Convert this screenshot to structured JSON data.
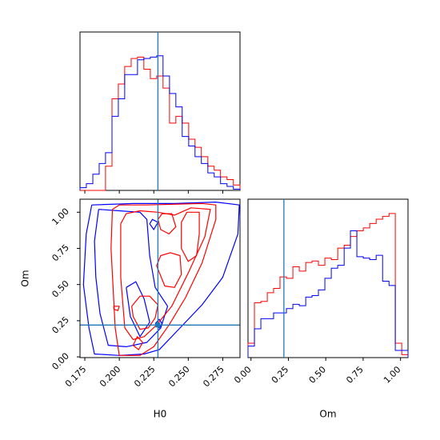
{
  "chart_data": {
    "type": "corner",
    "truth": {
      "H0": 0.228,
      "Om": 0.22
    },
    "colors": {
      "red": "#ff0000",
      "blue": "#0000ff",
      "truth": "#1f77b4"
    },
    "panels": {
      "h0_hist": {
        "type": "histogram",
        "xlim": [
          0.1715,
          0.2875
        ],
        "bin_edges": [
          0.1715,
          0.1761,
          0.1808,
          0.1854,
          0.19,
          0.1947,
          0.1993,
          0.2039,
          0.2086,
          0.2132,
          0.2178,
          0.2225,
          0.2271,
          0.2317,
          0.2364,
          0.241,
          0.2456,
          0.2503,
          0.2549,
          0.2595,
          0.2642,
          0.2688,
          0.2734,
          0.2781,
          0.2827,
          0.2875
        ],
        "series": [
          {
            "name": "",
            "color": "#ff0000",
            "values": [
              0,
              0,
              0,
              0,
              0.18,
              0.68,
              0.79,
              0.92,
              0.98,
              0.99,
              0.9,
              0.83,
              0.85,
              0.76,
              0.5,
              0.55,
              0.5,
              0.38,
              0.32,
              0.25,
              0.18,
              0.15,
              0.1,
              0.08,
              0.04
            ]
          },
          {
            "name": "",
            "color": "#0000ff",
            "values": [
              0.02,
              0.05,
              0.12,
              0.2,
              0.28,
              0.55,
              0.68,
              0.86,
              0.86,
              0.97,
              0.98,
              0.99,
              1.0,
              0.85,
              0.72,
              0.62,
              0.4,
              0.33,
              0.25,
              0.2,
              0.13,
              0.1,
              0.05,
              0.03,
              0.01
            ]
          }
        ]
      },
      "om_hist": {
        "type": "histogram",
        "xlim": [
          -0.02,
          1.05
        ],
        "bin_edges": [
          -0.02,
          0.023,
          0.066,
          0.109,
          0.151,
          0.194,
          0.237,
          0.28,
          0.323,
          0.366,
          0.408,
          0.451,
          0.494,
          0.537,
          0.58,
          0.623,
          0.665,
          0.708,
          0.751,
          0.794,
          0.837,
          0.88,
          0.923,
          0.965,
          1.008,
          1.05
        ],
        "series": [
          {
            "name": "",
            "color": "#ff0000",
            "values": [
              0.1,
              0.38,
              0.39,
              0.45,
              0.48,
              0.56,
              0.55,
              0.63,
              0.6,
              0.66,
              0.67,
              0.64,
              0.69,
              0.68,
              0.76,
              0.78,
              0.84,
              0.88,
              0.9,
              0.93,
              0.96,
              0.98,
              1.0,
              0.1,
              0.02
            ]
          },
          {
            "name": "",
            "color": "#0000ff",
            "values": [
              0.08,
              0.2,
              0.27,
              0.27,
              0.31,
              0.31,
              0.34,
              0.37,
              0.36,
              0.42,
              0.43,
              0.47,
              0.55,
              0.62,
              0.64,
              0.76,
              0.88,
              0.7,
              0.69,
              0.68,
              0.71,
              0.53,
              0.5,
              0.05,
              0.05
            ]
          }
        ]
      },
      "joint": {
        "type": "contour",
        "xlim": [
          0.1715,
          0.2875
        ],
        "ylim": [
          -0.005,
          1.09
        ],
        "red_levels": [
          [
            [
              0.195,
              1.02
            ],
            [
              0.194,
              0.75
            ],
            [
              0.197,
              0.2
            ],
            [
              0.2,
              0.01
            ],
            [
              0.208,
              0.01
            ],
            [
              0.215,
              0.01
            ],
            [
              0.225,
              0.07
            ],
            [
              0.236,
              0.22
            ],
            [
              0.248,
              0.41
            ],
            [
              0.26,
              0.65
            ],
            [
              0.27,
              0.95
            ],
            [
              0.27,
              1.05
            ],
            [
              0.26,
              1.06
            ],
            [
              0.22,
              1.05
            ],
            [
              0.2,
              1.05
            ],
            [
              0.195,
              1.02
            ]
          ],
          [
            [
              0.201,
              0.92
            ],
            [
              0.201,
              0.55
            ],
            [
              0.204,
              0.2
            ],
            [
              0.21,
              0.12
            ],
            [
              0.218,
              0.14
            ],
            [
              0.227,
              0.22
            ],
            [
              0.238,
              0.35
            ],
            [
              0.25,
              0.58
            ],
            [
              0.262,
              0.83
            ],
            [
              0.266,
              1.02
            ],
            [
              0.252,
              1.03
            ],
            [
              0.24,
              0.98
            ],
            [
              0.228,
              1.0
            ],
            [
              0.215,
              1.01
            ],
            [
              0.205,
              0.99
            ],
            [
              0.201,
              0.92
            ]
          ],
          [
            [
              0.209,
              0.35
            ],
            [
              0.21,
              0.28
            ],
            [
              0.215,
              0.19
            ],
            [
              0.221,
              0.2
            ],
            [
              0.226,
              0.27
            ],
            [
              0.228,
              0.36
            ],
            [
              0.222,
              0.42
            ],
            [
              0.215,
              0.42
            ],
            [
              0.209,
              0.35
            ]
          ],
          [
            [
              0.227,
              0.63
            ],
            [
              0.233,
              0.49
            ],
            [
              0.24,
              0.48
            ],
            [
              0.245,
              0.57
            ],
            [
              0.244,
              0.7
            ],
            [
              0.237,
              0.72
            ],
            [
              0.23,
              0.7
            ],
            [
              0.227,
              0.63
            ]
          ],
          [
            [
              0.245,
              0.75
            ],
            [
              0.25,
              0.66
            ],
            [
              0.256,
              0.7
            ],
            [
              0.258,
              0.85
            ],
            [
              0.258,
              1.0
            ],
            [
              0.249,
              1.0
            ],
            [
              0.245,
              0.93
            ],
            [
              0.245,
              0.75
            ]
          ],
          [
            [
              0.228,
              0.95
            ],
            [
              0.23,
              0.88
            ],
            [
              0.236,
              0.85
            ],
            [
              0.241,
              0.9
            ],
            [
              0.238,
              0.99
            ],
            [
              0.231,
              0.99
            ],
            [
              0.228,
              0.95
            ]
          ],
          [
            [
              0.21,
              0.08
            ],
            [
              0.214,
              0.05
            ],
            [
              0.217,
              0.1
            ],
            [
              0.213,
              0.14
            ],
            [
              0.21,
              0.08
            ]
          ],
          [
            [
              0.196,
              0.33
            ],
            [
              0.199,
              0.32
            ],
            [
              0.2,
              0.35
            ],
            [
              0.196,
              0.35
            ],
            [
              0.196,
              0.33
            ]
          ]
        ],
        "blue_levels": [
          [
            [
              0.18,
              1.05
            ],
            [
              0.176,
              0.85
            ],
            [
              0.174,
              0.5
            ],
            [
              0.178,
              0.2
            ],
            [
              0.182,
              0.02
            ],
            [
              0.2,
              0.01
            ],
            [
              0.218,
              0.02
            ],
            [
              0.229,
              0.05
            ],
            [
              0.242,
              0.18
            ],
            [
              0.26,
              0.36
            ],
            [
              0.275,
              0.55
            ],
            [
              0.286,
              0.85
            ],
            [
              0.287,
              1.05
            ],
            [
              0.27,
              1.07
            ],
            [
              0.24,
              1.06
            ],
            [
              0.21,
              1.06
            ],
            [
              0.18,
              1.05
            ]
          ],
          [
            [
              0.185,
              1.02
            ],
            [
              0.182,
              0.8
            ],
            [
              0.183,
              0.55
            ],
            [
              0.186,
              0.3
            ],
            [
              0.192,
              0.08
            ],
            [
              0.205,
              0.07
            ],
            [
              0.22,
              0.1
            ],
            [
              0.23,
              0.2
            ],
            [
              0.235,
              0.35
            ],
            [
              0.226,
              0.48
            ],
            [
              0.222,
              0.7
            ],
            [
              0.22,
              0.95
            ],
            [
              0.215,
              1.0
            ],
            [
              0.2,
              1.01
            ],
            [
              0.185,
              1.02
            ]
          ],
          [
            [
              0.205,
              0.48
            ],
            [
              0.208,
              0.28
            ],
            [
              0.215,
              0.14
            ],
            [
              0.222,
              0.24
            ],
            [
              0.218,
              0.4
            ],
            [
              0.212,
              0.52
            ],
            [
              0.205,
              0.48
            ]
          ],
          [
            [
              0.226,
              0.23
            ],
            [
              0.229,
              0.2
            ],
            [
              0.231,
              0.23
            ],
            [
              0.229,
              0.26
            ],
            [
              0.226,
              0.23
            ]
          ],
          [
            [
              0.222,
              0.92
            ],
            [
              0.225,
              0.88
            ],
            [
              0.228,
              0.93
            ],
            [
              0.224,
              0.95
            ],
            [
              0.222,
              0.92
            ]
          ]
        ]
      }
    },
    "axes": {
      "xlabel_h0": "H0",
      "ylabel_om": "Om",
      "xlabel_om": "Om",
      "h0_ticks": [
        "0.175",
        "0.200",
        "0.225",
        "0.250",
        "0.275"
      ],
      "om_ticks": [
        "0.00",
        "0.25",
        "0.50",
        "0.75",
        "1.00"
      ]
    }
  }
}
